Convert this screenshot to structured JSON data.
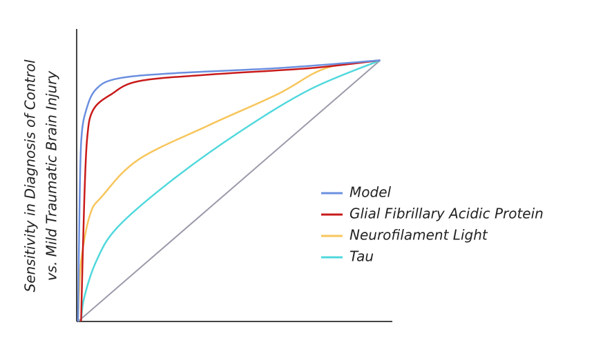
{
  "chart_data": {
    "type": "line",
    "ylabel": [
      "Sensitivity in Diagnosis of Control",
      "vs. Mild Traumatic Brain Injury"
    ],
    "xlim": [
      0,
      1.04
    ],
    "ylim": [
      0,
      1.12
    ],
    "series": [
      {
        "name": "Model",
        "color": "#6a8fe0",
        "x": [
          0,
          0.005,
          0.011,
          0.027,
          0.06,
          0.13,
          0.31,
          0.66,
          1
        ],
        "values": [
          0,
          0.45,
          0.7,
          0.81,
          0.89,
          0.93,
          0.95,
          0.97,
          1
        ]
      },
      {
        "name": "Glial Fibrillary Acidic Protein",
        "color": "#c81a1a",
        "x": [
          0.01,
          0.02,
          0.03,
          0.05,
          0.11,
          0.2,
          0.43,
          0.77,
          1
        ],
        "values": [
          0,
          0.44,
          0.7,
          0.81,
          0.87,
          0.92,
          0.945,
          0.97,
          1
        ]
      },
      {
        "name": "Neurofilament Light",
        "color": "#f7c55a",
        "x": [
          0,
          0.01,
          0.04,
          0.08,
          0.2,
          0.43,
          0.66,
          0.82,
          1
        ],
        "values": [
          0,
          0.23,
          0.41,
          0.48,
          0.62,
          0.75,
          0.87,
          0.97,
          1
        ]
      },
      {
        "name": "Tau",
        "color": "#4fd8dc",
        "x": [
          0.01,
          0.02,
          0.06,
          0.13,
          0.31,
          0.54,
          0.77,
          1
        ],
        "values": [
          0,
          0.09,
          0.23,
          0.36,
          0.54,
          0.73,
          0.89,
          1
        ]
      },
      {
        "color": "#9a9aaa",
        "x": [
          0,
          1
        ],
        "values": [
          0,
          1
        ]
      }
    ]
  }
}
